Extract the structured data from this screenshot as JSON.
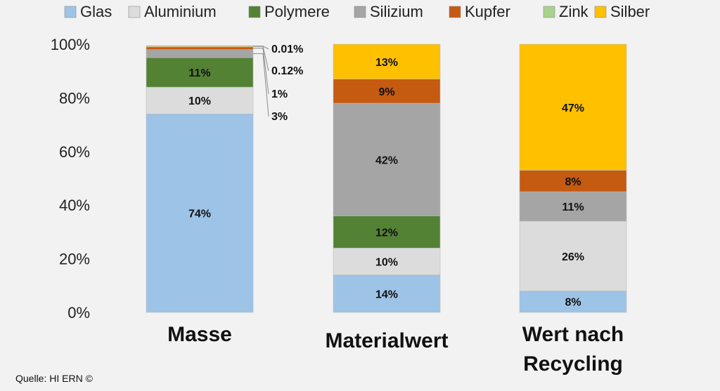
{
  "source_note": "Quelle: HI ERN ©",
  "chart_data": {
    "type": "bar",
    "stacked": true,
    "ylim": [
      0,
      100
    ],
    "yticks": [
      "0%",
      "20%",
      "40%",
      "60%",
      "80%",
      "100%"
    ],
    "ytick_values": [
      0,
      20,
      40,
      60,
      80,
      100
    ],
    "categories": [
      "Masse",
      "Materialwert",
      "Wert nach Recycling"
    ],
    "category_label_lines": [
      [
        "Masse"
      ],
      [
        "Materialwert"
      ],
      [
        "Wert nach",
        "Recycling"
      ]
    ],
    "grid": false,
    "legend_position": "top",
    "series": [
      {
        "name": "Glas",
        "color": "#9dc3e6",
        "values": [
          74,
          14,
          8
        ],
        "labels": [
          "74%",
          "14%",
          "8%"
        ]
      },
      {
        "name": "Aluminium",
        "color": "#dcdcdc",
        "values": [
          10,
          10,
          26
        ],
        "labels": [
          "10%",
          "10%",
          "26%"
        ]
      },
      {
        "name": "Polymere",
        "color": "#548235",
        "values": [
          11,
          12,
          0
        ],
        "labels": [
          "11%",
          "12%",
          ""
        ]
      },
      {
        "name": "Silizium",
        "color": "#a5a5a5",
        "values": [
          3,
          42,
          11
        ],
        "labels": [
          "",
          "42%",
          "11%"
        ]
      },
      {
        "name": "Kupfer",
        "color": "#c55a11",
        "values": [
          1,
          9,
          8
        ],
        "labels": [
          "",
          "9%",
          "8%"
        ]
      },
      {
        "name": "Zink",
        "color": "#a9d18e",
        "values": [
          0.12,
          0,
          0
        ],
        "labels": [
          "",
          "",
          ""
        ]
      },
      {
        "name": "Silber",
        "color": "#ffc000",
        "values": [
          0.01,
          13,
          47
        ],
        "labels": [
          "",
          "13%",
          "47%"
        ]
      }
    ],
    "callouts": [
      {
        "text": "0.01%",
        "bar": 0,
        "series": "Silber"
      },
      {
        "text": "0.12%",
        "bar": 0,
        "series": "Zink"
      },
      {
        "text": "1%",
        "bar": 0,
        "series": "Kupfer"
      },
      {
        "text": "3%",
        "bar": 0,
        "series": "Silizium"
      }
    ]
  }
}
